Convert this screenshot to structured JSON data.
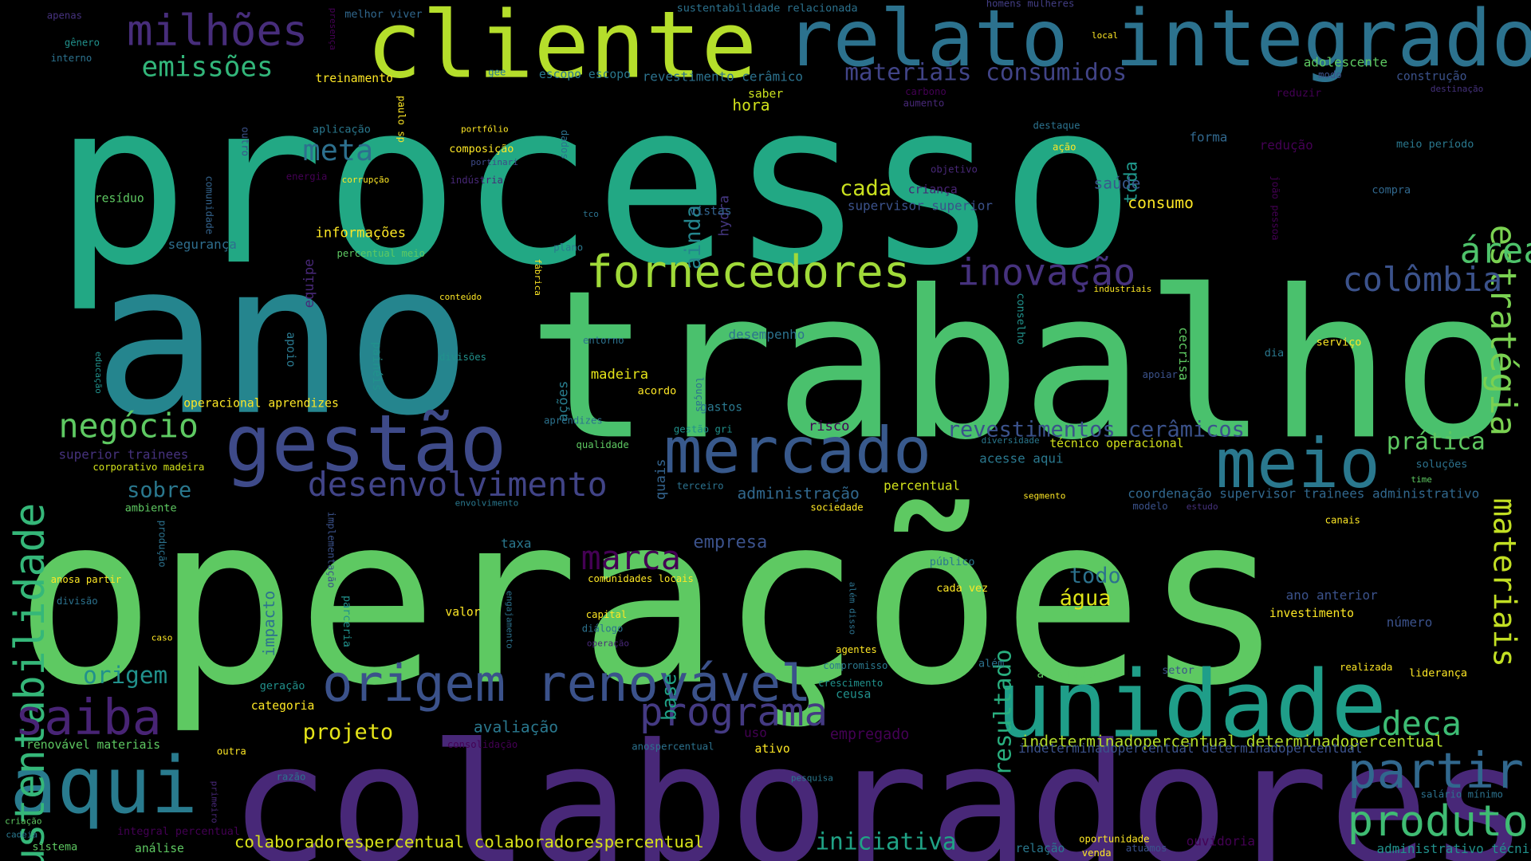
{
  "word_cloud": {
    "background_color": "#000000",
    "palette": [
      "#440154",
      "#3b528b",
      "#21908d",
      "#5dc863",
      "#fde725"
    ],
    "words": [
      {
        "text": "processo",
        "color": "#22a884"
      },
      {
        "text": "operações",
        "color": "#5ec962"
      },
      {
        "text": "trabalho",
        "color": "#4ac16d"
      },
      {
        "text": "ano",
        "color": "#25858e"
      },
      {
        "text": "colaboradores",
        "color": "#482878"
      },
      {
        "text": "cliente",
        "color": "#b5de2b"
      },
      {
        "text": "relato integrado",
        "color": "#2c728e"
      },
      {
        "text": "gestão",
        "color": "#3e4a89"
      },
      {
        "text": "unidade",
        "color": "#1f9e89"
      },
      {
        "text": "mercado",
        "color": "#38598c"
      },
      {
        "text": "meio",
        "color": "#2a788e"
      },
      {
        "text": "aqui",
        "color": "#297b8e"
      },
      {
        "text": "origem renovável",
        "color": "#3b528b"
      },
      {
        "text": "sustentabilidade",
        "color": "#35b779"
      },
      {
        "text": "fornecedores",
        "color": "#a0da39"
      },
      {
        "text": "milhões",
        "color": "#472d7b"
      },
      {
        "text": "partir",
        "color": "#31688e"
      },
      {
        "text": "programa",
        "color": "#443a83"
      },
      {
        "text": "saiba",
        "color": "#482475"
      },
      {
        "text": "produto",
        "color": "#3fbc73"
      },
      {
        "text": "desenvolvimento",
        "color": "#414487"
      },
      {
        "text": "inovação",
        "color": "#46327e"
      },
      {
        "text": "estratégia",
        "color": "#7ad151"
      },
      {
        "text": "materiais",
        "color": "#c2df23"
      },
      {
        "text": "área",
        "color": "#4ec36b"
      },
      {
        "text": "colômbia",
        "color": "#3b528b"
      },
      {
        "text": "negócio",
        "color": "#5ec962"
      },
      {
        "text": "marca",
        "color": "#440154"
      },
      {
        "text": "deca",
        "color": "#3dbc74"
      },
      {
        "text": "emissões",
        "color": "#32b67a"
      },
      {
        "text": "meta",
        "color": "#2d708e"
      },
      {
        "text": "resultado",
        "color": "#29af7f"
      },
      {
        "text": "materiais consumidos",
        "color": "#414487"
      },
      {
        "text": "revestimentos cerâmicos",
        "color": "#3b528b"
      },
      {
        "text": "origem",
        "color": "#21918c"
      },
      {
        "text": "prática",
        "color": "#5ec962"
      },
      {
        "text": "iniciativa",
        "color": "#20a386"
      },
      {
        "text": "projeto",
        "color": "#e5e419"
      },
      {
        "text": "todo",
        "color": "#2c728e"
      },
      {
        "text": "água",
        "color": "#dde318"
      },
      {
        "text": "cada",
        "color": "#cae11f"
      },
      {
        "text": "sobre",
        "color": "#2a788e"
      },
      {
        "text": "ainda",
        "color": "#24868e"
      },
      {
        "text": "toda",
        "color": "#1f978b"
      },
      {
        "text": "base",
        "color": "#1fa287"
      },
      {
        "text": "empresa",
        "color": "#3b528b"
      },
      {
        "text": "colaboradorespercentual colaboradorespercentual",
        "color": "#d8e219"
      },
      {
        "text": "indeterminadopercentual determinadopercentual",
        "color": "#b5de2b"
      },
      {
        "text": "administração",
        "color": "#31688e"
      },
      {
        "text": "coordenação supervisor trainees administrativo",
        "color": "#31688e"
      },
      {
        "text": "avaliação",
        "color": "#2a788e"
      },
      {
        "text": "impacto",
        "color": "#2c728e"
      },
      {
        "text": "hora",
        "color": "#d2e21b"
      },
      {
        "text": "saúde",
        "color": "#38598c"
      },
      {
        "text": "consumo",
        "color": "#fde725"
      },
      {
        "text": "madeira",
        "color": "#e5e419"
      },
      {
        "text": "ações",
        "color": "#287d8e"
      },
      {
        "text": "quais",
        "color": "#33638d"
      },
      {
        "text": "hydra",
        "color": "#453781"
      },
      {
        "text": "equipe",
        "color": "#482878"
      },
      {
        "text": "vistas",
        "color": "#32648e"
      },
      {
        "text": "criança",
        "color": "#482475"
      },
      {
        "text": "supervisor superior",
        "color": "#3b528b"
      },
      {
        "text": "informações",
        "color": "#fde725"
      },
      {
        "text": "segurança",
        "color": "#2e6e8e"
      },
      {
        "text": "resíduo",
        "color": "#5ec962"
      },
      {
        "text": "treinamento",
        "color": "#fde725"
      },
      {
        "text": "adolescente",
        "color": "#5ec962"
      },
      {
        "text": "construção",
        "color": "#3b528b"
      },
      {
        "text": "revestimento cerâmico",
        "color": "#2c728e"
      },
      {
        "text": "escopo escopo",
        "color": "#2a788e"
      },
      {
        "text": "saber",
        "color": "#cae11f"
      },
      {
        "text": "aumento",
        "color": "#482878"
      },
      {
        "text": "carbono",
        "color": "#440154"
      },
      {
        "text": "reduzir",
        "color": "#440154"
      },
      {
        "text": "destinação",
        "color": "#46327e"
      },
      {
        "text": "modo",
        "color": "#3b528b"
      },
      {
        "text": "local",
        "color": "#fde725"
      },
      {
        "text": "homens mulheres",
        "color": "#433e85"
      },
      {
        "text": "sustentabilidade relacionada",
        "color": "#2c728e"
      },
      {
        "text": "melhor viver",
        "color": "#31688e"
      },
      {
        "text": "apenas",
        "color": "#46327e"
      },
      {
        "text": "gênero",
        "color": "#21918c"
      },
      {
        "text": "interno",
        "color": "#2c728e"
      },
      {
        "text": "presença",
        "color": "#440154"
      },
      {
        "text": "gee",
        "color": "#2a788e"
      },
      {
        "text": "paulo sp",
        "color": "#fde725"
      },
      {
        "text": "aplicação",
        "color": "#2a788e"
      },
      {
        "text": "portfólio",
        "color": "#fde725"
      },
      {
        "text": "composição",
        "color": "#fde725"
      },
      {
        "text": "portinari",
        "color": "#3e4a89"
      },
      {
        "text": "indústria",
        "color": "#482878"
      },
      {
        "text": "dados",
        "color": "#2c728e"
      },
      {
        "text": "outro",
        "color": "#3b528b"
      },
      {
        "text": "comunidade",
        "color": "#33638d"
      },
      {
        "text": "energia",
        "color": "#440154"
      },
      {
        "text": "corrupção",
        "color": "#fde725"
      },
      {
        "text": "destaque",
        "color": "#2c728e"
      },
      {
        "text": "ação",
        "color": "#fde725"
      },
      {
        "text": "forma",
        "color": "#31688e"
      },
      {
        "text": "redução",
        "color": "#440154"
      },
      {
        "text": "meio período",
        "color": "#2a788e"
      },
      {
        "text": "compra",
        "color": "#31688e"
      },
      {
        "text": "objetivo",
        "color": "#482878"
      },
      {
        "text": "joão pessoa",
        "color": "#440154"
      },
      {
        "text": "tco",
        "color": "#2c728e"
      },
      {
        "text": "plano",
        "color": "#2a788e"
      },
      {
        "text": "fábrica",
        "color": "#fde725"
      },
      {
        "text": "percentual meio",
        "color": "#5ec962"
      },
      {
        "text": "conteúdo",
        "color": "#fde725"
      },
      {
        "text": "entorno",
        "color": "#2c728e"
      },
      {
        "text": "divisões",
        "color": "#21918c"
      },
      {
        "text": "conselho",
        "color": "#21918c"
      },
      {
        "text": "industriais",
        "color": "#fde725"
      },
      {
        "text": "serviço",
        "color": "#fde725"
      },
      {
        "text": "dia",
        "color": "#2a788e"
      },
      {
        "text": "apoiar",
        "color": "#3b528b"
      },
      {
        "text": "educação",
        "color": "#21918c"
      },
      {
        "text": "apoio",
        "color": "#2a788e"
      },
      {
        "text": "painéis",
        "color": "#21918c"
      },
      {
        "text": "operacional aprendizes",
        "color": "#fde725"
      },
      {
        "text": "desempenho",
        "color": "#2c728e"
      },
      {
        "text": "acordo",
        "color": "#fde725"
      },
      {
        "text": "louças",
        "color": "#2c728e"
      },
      {
        "text": "gastos",
        "color": "#2a788e"
      },
      {
        "text": "cecrisa",
        "color": "#5ec962"
      },
      {
        "text": "risco",
        "color": "#440154"
      },
      {
        "text": "aprendizes",
        "color": "#2c728e"
      },
      {
        "text": "gestão gri",
        "color": "#21918c"
      },
      {
        "text": "qualidade",
        "color": "#5ec962"
      },
      {
        "text": "diversidade",
        "color": "#2a788e"
      },
      {
        "text": "técnico operacional",
        "color": "#d2e21b"
      },
      {
        "text": "acesse aqui",
        "color": "#2a788e"
      },
      {
        "text": "percentual",
        "color": "#d2e21b"
      },
      {
        "text": "superior trainees",
        "color": "#46327e"
      },
      {
        "text": "corporativo madeira",
        "color": "#d2e21b"
      },
      {
        "text": "ambiente",
        "color": "#5ec962"
      },
      {
        "text": "terceiro",
        "color": "#2c728e"
      },
      {
        "text": "envolvimento",
        "color": "#2a788e"
      },
      {
        "text": "segmento",
        "color": "#fde725"
      },
      {
        "text": "sociedade",
        "color": "#fde725"
      },
      {
        "text": "modelo",
        "color": "#3b528b"
      },
      {
        "text": "estudo",
        "color": "#46327e"
      },
      {
        "text": "soluções",
        "color": "#2c728e"
      },
      {
        "text": "time",
        "color": "#5ec962"
      },
      {
        "text": "canais",
        "color": "#fde725"
      },
      {
        "text": "taxa",
        "color": "#2a788e"
      },
      {
        "text": "implementação",
        "color": "#3b528b"
      },
      {
        "text": "produção",
        "color": "#2c728e"
      },
      {
        "text": "público",
        "color": "#2a788e"
      },
      {
        "text": "cada vez",
        "color": "#fde725"
      },
      {
        "text": "anosa partir",
        "color": "#fde725"
      },
      {
        "text": "comunidades locais",
        "color": "#fde725"
      },
      {
        "text": "divisão",
        "color": "#2c728e"
      },
      {
        "text": "parceria",
        "color": "#21918c"
      },
      {
        "text": "valor",
        "color": "#fde725"
      },
      {
        "text": "capital",
        "color": "#fde725"
      },
      {
        "text": "diálogo",
        "color": "#2c728e"
      },
      {
        "text": "engajamento",
        "color": "#2c728e"
      },
      {
        "text": "operação",
        "color": "#482878"
      },
      {
        "text": "além disso",
        "color": "#2c728e"
      },
      {
        "text": "ano anterior",
        "color": "#3b528b"
      },
      {
        "text": "investimento",
        "color": "#fde725"
      },
      {
        "text": "número",
        "color": "#3b528b"
      },
      {
        "text": "caso",
        "color": "#fde725"
      },
      {
        "text": "agentes",
        "color": "#fde725"
      },
      {
        "text": "compromisso",
        "color": "#2a788e"
      },
      {
        "text": "crescimento",
        "color": "#21918c"
      },
      {
        "text": "ceusa",
        "color": "#21918c"
      },
      {
        "text": "além",
        "color": "#2c728e"
      },
      {
        "text": "atividade",
        "color": "#5ec962"
      },
      {
        "text": "setor",
        "color": "#3b528b"
      },
      {
        "text": "realizada",
        "color": "#fde725"
      },
      {
        "text": "liderança",
        "color": "#fde725"
      },
      {
        "text": "geração",
        "color": "#21918c"
      },
      {
        "text": "categoria",
        "color": "#fde725"
      },
      {
        "text": "uso",
        "color": "#440154"
      },
      {
        "text": "empregado",
        "color": "#440154"
      },
      {
        "text": "indeterminadopercentual determinadopercentual",
        "color": "#3b528b"
      },
      {
        "text": "renovável materiais",
        "color": "#5ec962"
      },
      {
        "text": "outra",
        "color": "#fde725"
      },
      {
        "text": "consolidação",
        "color": "#440154"
      },
      {
        "text": "anospercentual",
        "color": "#2c728e"
      },
      {
        "text": "ativo",
        "color": "#fde725"
      },
      {
        "text": "razão",
        "color": "#2c728e"
      },
      {
        "text": "primeiro",
        "color": "#482878"
      },
      {
        "text": "pesquisa",
        "color": "#2a788e"
      },
      {
        "text": "salário mínimo",
        "color": "#2c728e"
      },
      {
        "text": "criação",
        "color": "#5ec962"
      },
      {
        "text": "integral percentual",
        "color": "#440154"
      },
      {
        "text": "cadeia",
        "color": "#2a788e"
      },
      {
        "text": "sistema",
        "color": "#5ec962"
      },
      {
        "text": "análise",
        "color": "#5ec962"
      },
      {
        "text": "relação",
        "color": "#2a788e"
      },
      {
        "text": "oportunidade",
        "color": "#fde725"
      },
      {
        "text": "venda",
        "color": "#fde725"
      },
      {
        "text": "atuamos",
        "color": "#3b528b"
      },
      {
        "text": "ouvidoria",
        "color": "#440154"
      },
      {
        "text": "administrativo técnico",
        "color": "#21918c"
      }
    ]
  }
}
